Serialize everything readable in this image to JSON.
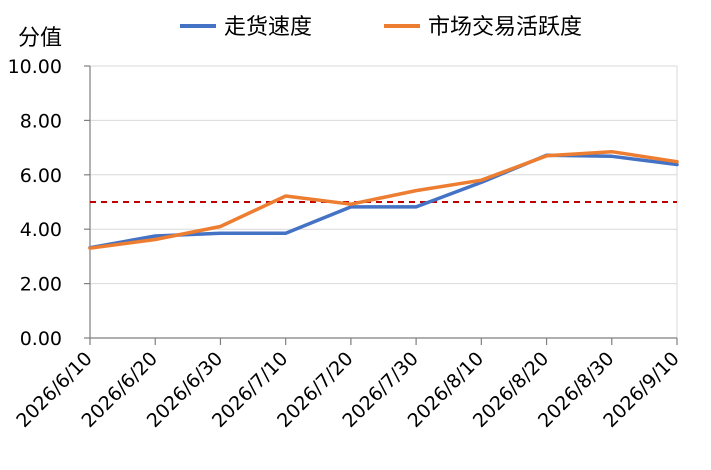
{
  "chart_data": {
    "type": "line",
    "ylabel": "分值",
    "x": [
      "2026/6/10",
      "2026/6/20",
      "2026/6/30",
      "2026/7/10",
      "2026/7/20",
      "2026/7/30",
      "2026/8/10",
      "2026/8/20",
      "2026/8/30",
      "2026/9/10"
    ],
    "series": [
      {
        "name": "走货速度",
        "color": "#4472c4",
        "values": [
          3.32,
          3.75,
          3.85,
          3.85,
          4.82,
          4.82,
          5.72,
          6.72,
          6.68,
          6.38
        ]
      },
      {
        "name": "市场交易活跃度",
        "color": "#ed7d31",
        "values": [
          3.3,
          3.62,
          4.1,
          5.22,
          4.92,
          5.42,
          5.8,
          6.7,
          6.85,
          6.48
        ]
      }
    ],
    "reference_line": {
      "value": 5.0,
      "color": "#c00000",
      "style": "dashed"
    },
    "ylim": [
      0,
      10
    ],
    "yticks": [
      "0.00",
      "2.00",
      "4.00",
      "6.00",
      "8.00",
      "10.00"
    ],
    "grid": true,
    "legend_position": "top"
  }
}
